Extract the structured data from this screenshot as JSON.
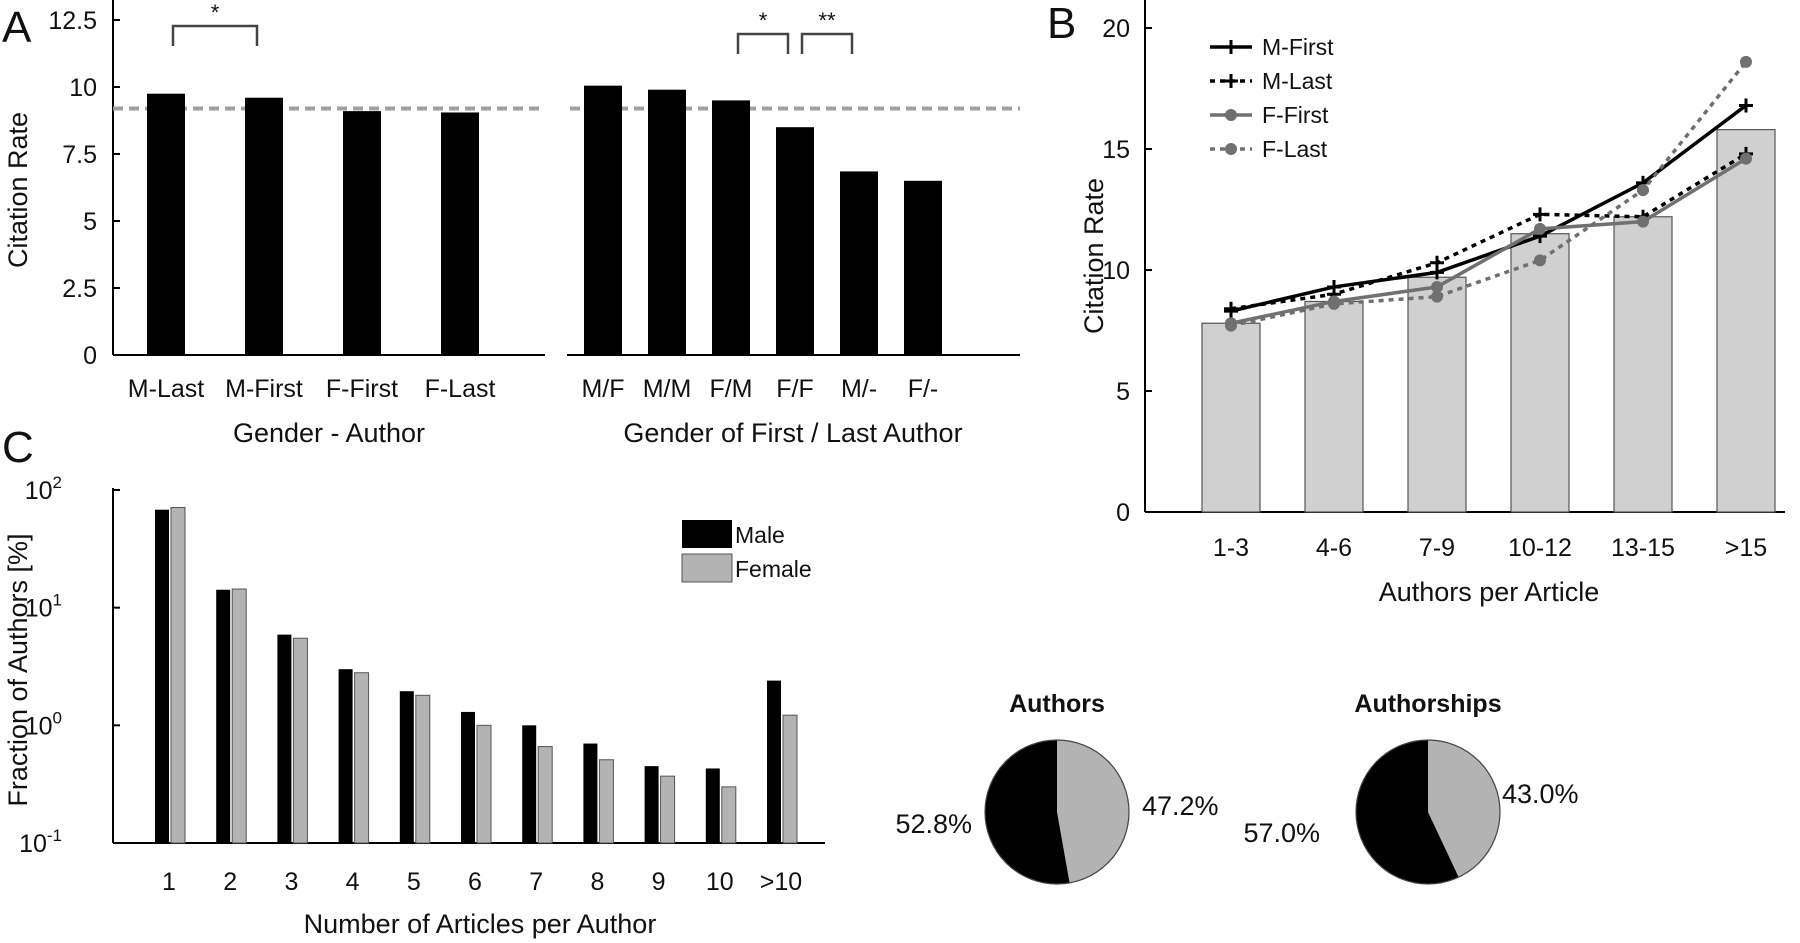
{
  "colors": {
    "black": "#000000",
    "gray_bar": "#d0d0d0",
    "female_bar": "#b3b3b3",
    "gray_line": "#707070",
    "reference_line": "#a0a0a0"
  },
  "chart_data": [
    {
      "panel": "A",
      "type": "bar",
      "ylabel": "Citation Rate",
      "ylim": [
        0,
        12.5
      ],
      "yticks": [
        "0",
        "2.5",
        "5",
        "7.5",
        "10",
        "12.5"
      ],
      "reference_line": 9.2,
      "groups": [
        {
          "xlabel": "Gender - Author",
          "categories": [
            "M-Last",
            "M-First",
            "F-First",
            "F-Last"
          ],
          "values": [
            9.75,
            9.6,
            9.1,
            9.05
          ],
          "significance": [
            {
              "from": 0,
              "to": 1,
              "label": "*"
            }
          ]
        },
        {
          "xlabel": "Gender of First / Last Author",
          "categories": [
            "M/F",
            "M/M",
            "F/M",
            "F/F",
            "M/-",
            "F/-"
          ],
          "values": [
            10.05,
            9.9,
            9.5,
            8.5,
            6.85,
            6.5
          ],
          "significance": [
            {
              "from": 2,
              "to": 3,
              "label": "*"
            },
            {
              "from": 3,
              "to": 4,
              "label": "**"
            }
          ]
        }
      ]
    },
    {
      "panel": "B",
      "type": "bar+line",
      "xlabel": "Authors per Article",
      "ylabel": "Citation Rate",
      "ylim": [
        0,
        20
      ],
      "yticks": [
        "0",
        "5",
        "10",
        "15",
        "20"
      ],
      "categories": [
        "1-3",
        "4-6",
        "7-9",
        "10-12",
        "13-15",
        ">15"
      ],
      "bar_values": [
        7.8,
        8.7,
        9.7,
        11.5,
        12.2,
        15.8
      ],
      "legend_position": "top-left",
      "series": [
        {
          "name": "M-First",
          "values": [
            8.3,
            9.3,
            9.9,
            11.4,
            13.6,
            16.8
          ],
          "color": "#000000",
          "dash": "solid",
          "marker": "plus"
        },
        {
          "name": "M-Last",
          "values": [
            8.4,
            9.0,
            10.3,
            12.3,
            12.2,
            14.8
          ],
          "color": "#000000",
          "dash": "dotted",
          "marker": "plus"
        },
        {
          "name": "F-First",
          "values": [
            7.8,
            8.7,
            9.3,
            11.7,
            12.0,
            14.6
          ],
          "color": "#707070",
          "dash": "solid",
          "marker": "dot"
        },
        {
          "name": "F-Last",
          "values": [
            7.7,
            8.6,
            8.9,
            10.4,
            13.3,
            18.6
          ],
          "color": "#707070",
          "dash": "dotted",
          "marker": "dot"
        }
      ]
    },
    {
      "panel": "C",
      "type": "bar",
      "scale": "log",
      "xlabel": "Number of Articles per Author",
      "ylabel": "Fraction of Authors [%]",
      "ylim": [
        0.1,
        100
      ],
      "yticks": [
        {
          "base": "10",
          "exp": "-1"
        },
        {
          "base": "10",
          "exp": "0"
        },
        {
          "base": "10",
          "exp": "1"
        },
        {
          "base": "10",
          "exp": "2"
        }
      ],
      "categories": [
        "1",
        "2",
        "3",
        "4",
        "5",
        "6",
        "7",
        "8",
        "9",
        "10",
        ">10"
      ],
      "legend_position": "top-right",
      "series": [
        {
          "name": "Male",
          "values": [
            68,
            14.2,
            5.9,
            3.0,
            1.95,
            1.3,
            1.0,
            0.7,
            0.45,
            0.43,
            2.4
          ],
          "color": "#000000"
        },
        {
          "name": "Female",
          "values": [
            71,
            14.4,
            5.5,
            2.8,
            1.8,
            1.0,
            0.66,
            0.51,
            0.37,
            0.3,
            1.22
          ],
          "color": "#b3b3b3"
        }
      ]
    },
    {
      "panel": "C",
      "type": "pie",
      "title": "Authors",
      "slices": [
        {
          "label": "52.8%",
          "value": 52.8,
          "color": "#000000"
        },
        {
          "label": "47.2%",
          "value": 47.2,
          "color": "#b3b3b3"
        }
      ]
    },
    {
      "panel": "C",
      "type": "pie",
      "title": "Authorships",
      "slices": [
        {
          "label": "57.0%",
          "value": 57.0,
          "color": "#000000"
        },
        {
          "label": "43.0%",
          "value": 43.0,
          "color": "#b3b3b3"
        }
      ]
    }
  ]
}
